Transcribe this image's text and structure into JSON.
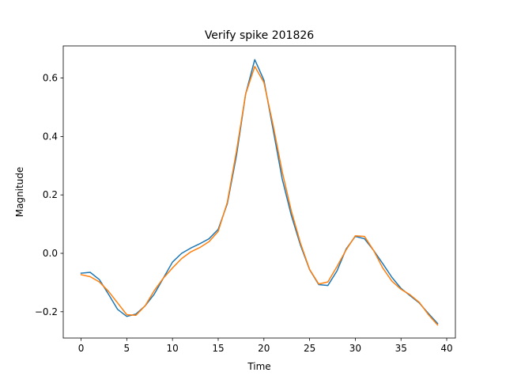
{
  "chart_data": {
    "type": "line",
    "title": "Verify spike 201826",
    "xlabel": "Time",
    "ylabel": "Magnitude",
    "xlim": [
      -1.95,
      40.95
    ],
    "ylim": [
      -0.29,
      0.71
    ],
    "xticks": [
      0,
      5,
      10,
      15,
      20,
      25,
      30,
      35,
      40
    ],
    "yticks": [
      -0.2,
      0.0,
      0.2,
      0.4,
      0.6
    ],
    "xtick_labels": [
      "0",
      "5",
      "10",
      "15",
      "20",
      "25",
      "30",
      "35",
      "40"
    ],
    "ytick_labels": [
      "−0.2",
      "0.0",
      "0.2",
      "0.4",
      "0.6"
    ],
    "grid": false,
    "legend": false,
    "x": [
      0,
      1,
      2,
      3,
      4,
      5,
      6,
      7,
      8,
      9,
      10,
      11,
      12,
      13,
      14,
      15,
      16,
      17,
      18,
      19,
      20,
      21,
      22,
      23,
      24,
      25,
      26,
      27,
      28,
      29,
      30,
      31,
      32,
      33,
      34,
      35,
      36,
      37,
      38,
      39
    ],
    "series": [
      {
        "color": "#1f77b4",
        "values": [
          -0.068,
          -0.065,
          -0.09,
          -0.14,
          -0.192,
          -0.216,
          -0.208,
          -0.18,
          -0.14,
          -0.085,
          -0.03,
          0.0,
          0.018,
          0.033,
          0.05,
          0.082,
          0.17,
          0.335,
          0.545,
          0.663,
          0.593,
          0.425,
          0.255,
          0.13,
          0.028,
          -0.056,
          -0.107,
          -0.11,
          -0.06,
          0.015,
          0.058,
          0.05,
          0.01,
          -0.035,
          -0.082,
          -0.12,
          -0.145,
          -0.17,
          -0.206,
          -0.24
        ]
      },
      {
        "color": "#ff7f0e",
        "values": [
          -0.073,
          -0.08,
          -0.098,
          -0.13,
          -0.17,
          -0.21,
          -0.212,
          -0.18,
          -0.128,
          -0.085,
          -0.05,
          -0.018,
          0.005,
          0.02,
          0.04,
          0.075,
          0.175,
          0.35,
          0.545,
          0.64,
          0.585,
          0.44,
          0.28,
          0.145,
          0.035,
          -0.055,
          -0.105,
          -0.098,
          -0.045,
          0.012,
          0.06,
          0.058,
          0.01,
          -0.05,
          -0.095,
          -0.123,
          -0.142,
          -0.168,
          -0.21,
          -0.245
        ]
      }
    ]
  }
}
